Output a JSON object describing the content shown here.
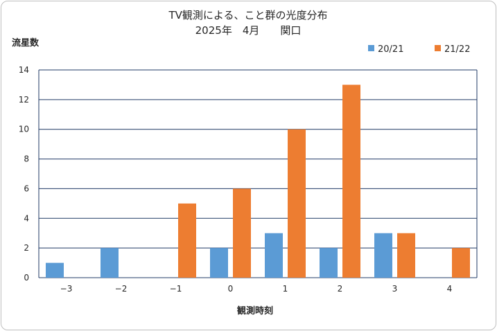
{
  "chart_data": {
    "type": "bar",
    "title_line1": "TV観測による、こと群の光度分布",
    "title_line2": "2025年　4月　　関口",
    "ylabel": "流星数",
    "xlabel": "観測時刻",
    "categories": [
      "−3",
      "−2",
      "−1",
      "0",
      "1",
      "2",
      "3",
      "4"
    ],
    "ylim": [
      0,
      14
    ],
    "yticks": [
      0,
      2,
      4,
      6,
      8,
      10,
      12,
      14
    ],
    "grid": true,
    "legend_position": "top-right",
    "series": [
      {
        "name": "20/21",
        "color": "#5b9bd5",
        "values": [
          1,
          2,
          0,
          2,
          3,
          2,
          3,
          0
        ]
      },
      {
        "name": "21/22",
        "color": "#ed7d31",
        "values": [
          0,
          0,
          5,
          6,
          10,
          13,
          3,
          2
        ]
      }
    ]
  }
}
